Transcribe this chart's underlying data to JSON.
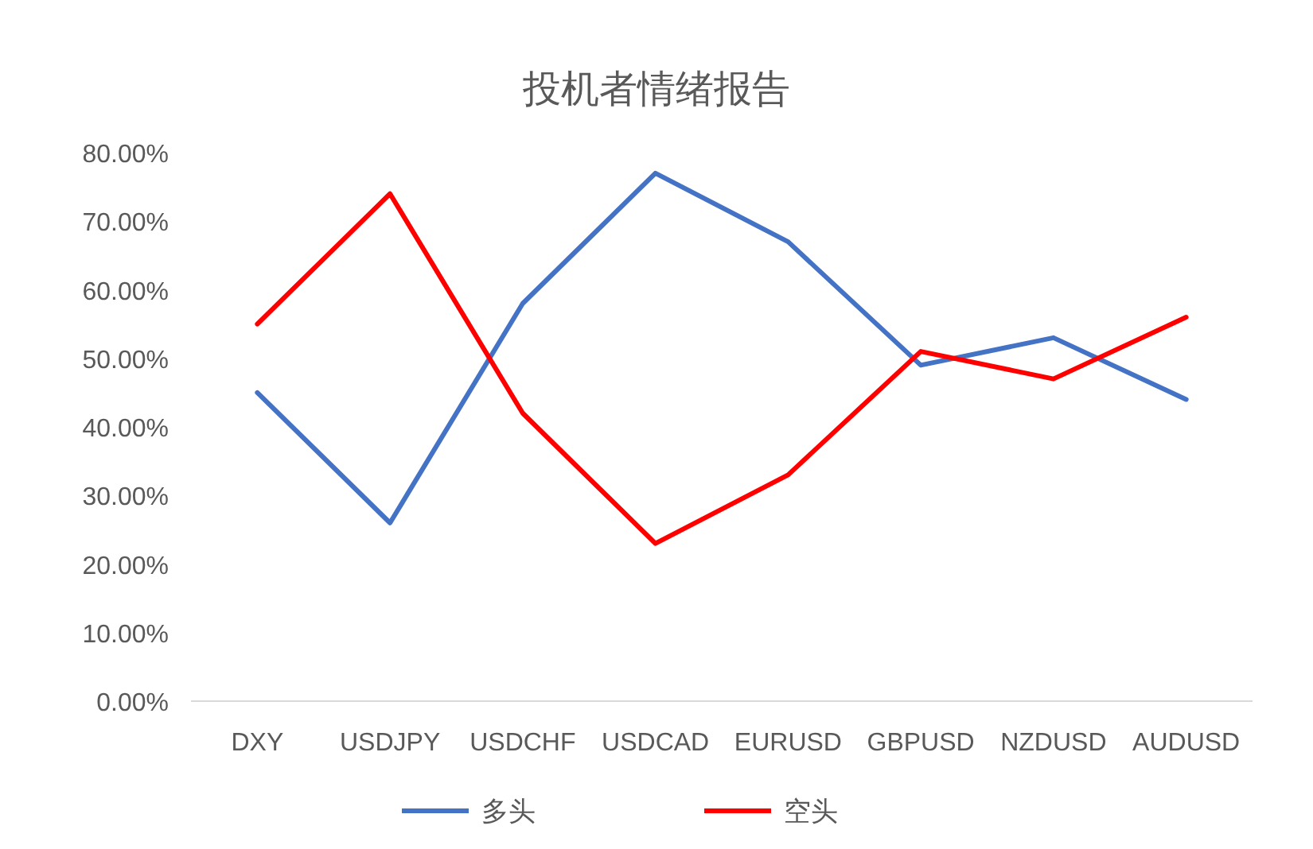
{
  "chart_data": {
    "type": "line",
    "title": "投机者情绪报告",
    "categories": [
      "DXY",
      "USDJPY",
      "USDCHF",
      "USDCAD",
      "EURUSD",
      "GBPUSD",
      "NZDUSD",
      "AUDUSD"
    ],
    "series": [
      {
        "name": "多头",
        "color": "#4472c4",
        "values": [
          45,
          26,
          58,
          77,
          67,
          49,
          53,
          44
        ]
      },
      {
        "name": "空头",
        "color": "#ff0000",
        "values": [
          55,
          74,
          42,
          23,
          33,
          51,
          47,
          56
        ]
      }
    ],
    "ylim": [
      0,
      80
    ],
    "yticks": [
      {
        "value": 0,
        "label": "0.00%"
      },
      {
        "value": 10,
        "label": "10.00%"
      },
      {
        "value": 20,
        "label": "20.00%"
      },
      {
        "value": 30,
        "label": "30.00%"
      },
      {
        "value": 40,
        "label": "40.00%"
      },
      {
        "value": 50,
        "label": "50.00%"
      },
      {
        "value": 60,
        "label": "60.00%"
      },
      {
        "value": 70,
        "label": "70.00%"
      },
      {
        "value": 80,
        "label": "80.00%"
      }
    ],
    "legend": "bottom"
  }
}
